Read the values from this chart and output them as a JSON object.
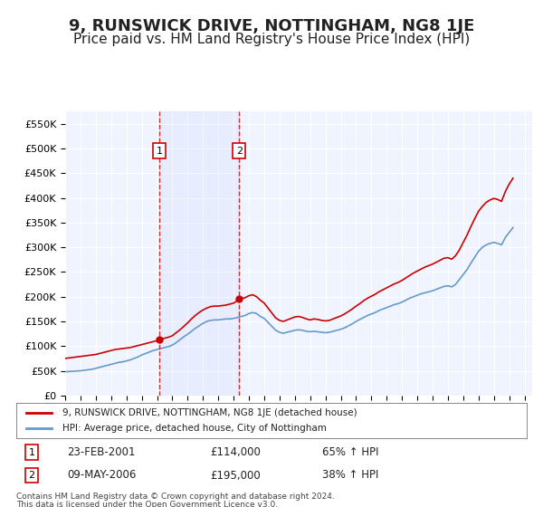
{
  "title": "9, RUNSWICK DRIVE, NOTTINGHAM, NG8 1JE",
  "subtitle": "Price paid vs. HM Land Registry's House Price Index (HPI)",
  "title_fontsize": 13,
  "subtitle_fontsize": 11,
  "ylim": [
    0,
    575000
  ],
  "yticks": [
    0,
    50000,
    100000,
    150000,
    200000,
    250000,
    300000,
    350000,
    400000,
    450000,
    500000,
    550000
  ],
  "ytick_labels": [
    "£0",
    "£50K",
    "£100K",
    "£150K",
    "£200K",
    "£250K",
    "£300K",
    "£350K",
    "£400K",
    "£450K",
    "£500K",
    "£550K"
  ],
  "xlim_start": 1995.0,
  "xlim_end": 2025.5,
  "red_line_color": "#cc0000",
  "blue_line_color": "#6699cc",
  "vline_color": "#cc0000",
  "background_color": "#ffffff",
  "plot_bg_color": "#f0f4ff",
  "grid_color": "#ffffff",
  "sale1_x": 2001.14,
  "sale1_y": 114000,
  "sale1_label": "1",
  "sale1_date": "23-FEB-2001",
  "sale1_price": "£114,000",
  "sale1_hpi": "65% ↑ HPI",
  "sale2_x": 2006.36,
  "sale2_y": 195000,
  "sale2_label": "2",
  "sale2_date": "09-MAY-2006",
  "sale2_price": "£195,000",
  "sale2_hpi": "38% ↑ HPI",
  "legend_label_red": "9, RUNSWICK DRIVE, NOTTINGHAM, NG8 1JE (detached house)",
  "legend_label_blue": "HPI: Average price, detached house, City of Nottingham",
  "footer1": "Contains HM Land Registry data © Crown copyright and database right 2024.",
  "footer2": "This data is licensed under the Open Government Licence v3.0.",
  "hpi_x": [
    1995.0,
    1995.25,
    1995.5,
    1995.75,
    1996.0,
    1996.25,
    1996.5,
    1996.75,
    1997.0,
    1997.25,
    1997.5,
    1997.75,
    1998.0,
    1998.25,
    1998.5,
    1998.75,
    1999.0,
    1999.25,
    1999.5,
    1999.75,
    2000.0,
    2000.25,
    2000.5,
    2000.75,
    2001.0,
    2001.25,
    2001.5,
    2001.75,
    2002.0,
    2002.25,
    2002.5,
    2002.75,
    2003.0,
    2003.25,
    2003.5,
    2003.75,
    2004.0,
    2004.25,
    2004.5,
    2004.75,
    2005.0,
    2005.25,
    2005.5,
    2005.75,
    2006.0,
    2006.25,
    2006.5,
    2006.75,
    2007.0,
    2007.25,
    2007.5,
    2007.75,
    2008.0,
    2008.25,
    2008.5,
    2008.75,
    2009.0,
    2009.25,
    2009.5,
    2009.75,
    2010.0,
    2010.25,
    2010.5,
    2010.75,
    2011.0,
    2011.25,
    2011.5,
    2011.75,
    2012.0,
    2012.25,
    2012.5,
    2012.75,
    2013.0,
    2013.25,
    2013.5,
    2013.75,
    2014.0,
    2014.25,
    2014.5,
    2014.75,
    2015.0,
    2015.25,
    2015.5,
    2015.75,
    2016.0,
    2016.25,
    2016.5,
    2016.75,
    2017.0,
    2017.25,
    2017.5,
    2017.75,
    2018.0,
    2018.25,
    2018.5,
    2018.75,
    2019.0,
    2019.25,
    2019.5,
    2019.75,
    2020.0,
    2020.25,
    2020.5,
    2020.75,
    2021.0,
    2021.25,
    2021.5,
    2021.75,
    2022.0,
    2022.25,
    2022.5,
    2022.75,
    2023.0,
    2023.25,
    2023.5,
    2023.75,
    2024.0,
    2024.25
  ],
  "hpi_y": [
    48000,
    48500,
    49000,
    49500,
    50000,
    51000,
    52000,
    53000,
    55000,
    57000,
    59000,
    61000,
    63000,
    65000,
    67000,
    68000,
    70000,
    72000,
    75000,
    78000,
    82000,
    85000,
    88000,
    91000,
    93000,
    95000,
    97000,
    99000,
    102000,
    107000,
    113000,
    119000,
    124000,
    130000,
    136000,
    141000,
    146000,
    150000,
    152000,
    153000,
    153000,
    154000,
    155000,
    155000,
    156000,
    158000,
    160000,
    162000,
    166000,
    168000,
    166000,
    160000,
    156000,
    148000,
    140000,
    132000,
    128000,
    126000,
    128000,
    130000,
    132000,
    133000,
    132000,
    130000,
    129000,
    130000,
    129000,
    128000,
    127000,
    128000,
    130000,
    132000,
    134000,
    137000,
    141000,
    145000,
    150000,
    154000,
    158000,
    162000,
    165000,
    168000,
    172000,
    175000,
    178000,
    181000,
    184000,
    186000,
    189000,
    193000,
    197000,
    200000,
    203000,
    206000,
    208000,
    210000,
    212000,
    215000,
    218000,
    221000,
    222000,
    220000,
    225000,
    235000,
    245000,
    255000,
    268000,
    280000,
    292000,
    300000,
    305000,
    308000,
    310000,
    308000,
    305000,
    320000,
    330000,
    340000
  ],
  "price_x": [
    1995.0,
    1995.25,
    1995.5,
    1995.75,
    1996.0,
    1996.25,
    1996.5,
    1996.75,
    1997.0,
    1997.25,
    1997.5,
    1997.75,
    1998.0,
    1998.25,
    1998.5,
    1998.75,
    1999.0,
    1999.25,
    1999.5,
    1999.75,
    2000.0,
    2000.25,
    2000.5,
    2000.75,
    2001.0,
    2001.25,
    2001.5,
    2001.75,
    2002.0,
    2002.25,
    2002.5,
    2002.75,
    2003.0,
    2003.25,
    2003.5,
    2003.75,
    2004.0,
    2004.25,
    2004.5,
    2004.75,
    2005.0,
    2005.25,
    2005.5,
    2005.75,
    2006.0,
    2006.25,
    2006.5,
    2006.75,
    2007.0,
    2007.25,
    2007.5,
    2007.75,
    2008.0,
    2008.25,
    2008.5,
    2008.75,
    2009.0,
    2009.25,
    2009.5,
    2009.75,
    2010.0,
    2010.25,
    2010.5,
    2010.75,
    2011.0,
    2011.25,
    2011.5,
    2011.75,
    2012.0,
    2012.25,
    2012.5,
    2012.75,
    2013.0,
    2013.25,
    2013.5,
    2013.75,
    2014.0,
    2014.25,
    2014.5,
    2014.75,
    2015.0,
    2015.25,
    2015.5,
    2015.75,
    2016.0,
    2016.25,
    2016.5,
    2016.75,
    2017.0,
    2017.25,
    2017.5,
    2017.75,
    2018.0,
    2018.25,
    2018.5,
    2018.75,
    2019.0,
    2019.25,
    2019.5,
    2019.75,
    2020.0,
    2020.25,
    2020.5,
    2020.75,
    2021.0,
    2021.25,
    2021.5,
    2021.75,
    2022.0,
    2022.25,
    2022.5,
    2022.75,
    2023.0,
    2023.25,
    2023.5,
    2023.75,
    2024.0,
    2024.25
  ],
  "price_y": [
    75000,
    76000,
    77000,
    78000,
    79000,
    80000,
    81000,
    82000,
    83000,
    85000,
    87000,
    89000,
    91000,
    93000,
    94000,
    95000,
    96000,
    97000,
    99000,
    101000,
    103000,
    105000,
    107000,
    109000,
    111000,
    114000,
    116000,
    118000,
    121000,
    127000,
    133000,
    140000,
    147000,
    155000,
    162000,
    168000,
    173000,
    177000,
    180000,
    181000,
    181000,
    182000,
    183000,
    185000,
    187000,
    192000,
    196000,
    198000,
    202000,
    204000,
    200000,
    193000,
    187000,
    177000,
    167000,
    157000,
    152000,
    150000,
    153000,
    156000,
    159000,
    160000,
    158000,
    155000,
    153000,
    155000,
    154000,
    152000,
    151000,
    152000,
    155000,
    158000,
    161000,
    165000,
    170000,
    175000,
    181000,
    186000,
    192000,
    197000,
    201000,
    205000,
    210000,
    214000,
    218000,
    222000,
    226000,
    229000,
    233000,
    238000,
    243000,
    248000,
    252000,
    256000,
    260000,
    263000,
    266000,
    270000,
    274000,
    278000,
    279000,
    276000,
    283000,
    295000,
    310000,
    325000,
    342000,
    358000,
    373000,
    383000,
    391000,
    396000,
    399000,
    397000,
    393000,
    413000,
    428000,
    440000
  ]
}
